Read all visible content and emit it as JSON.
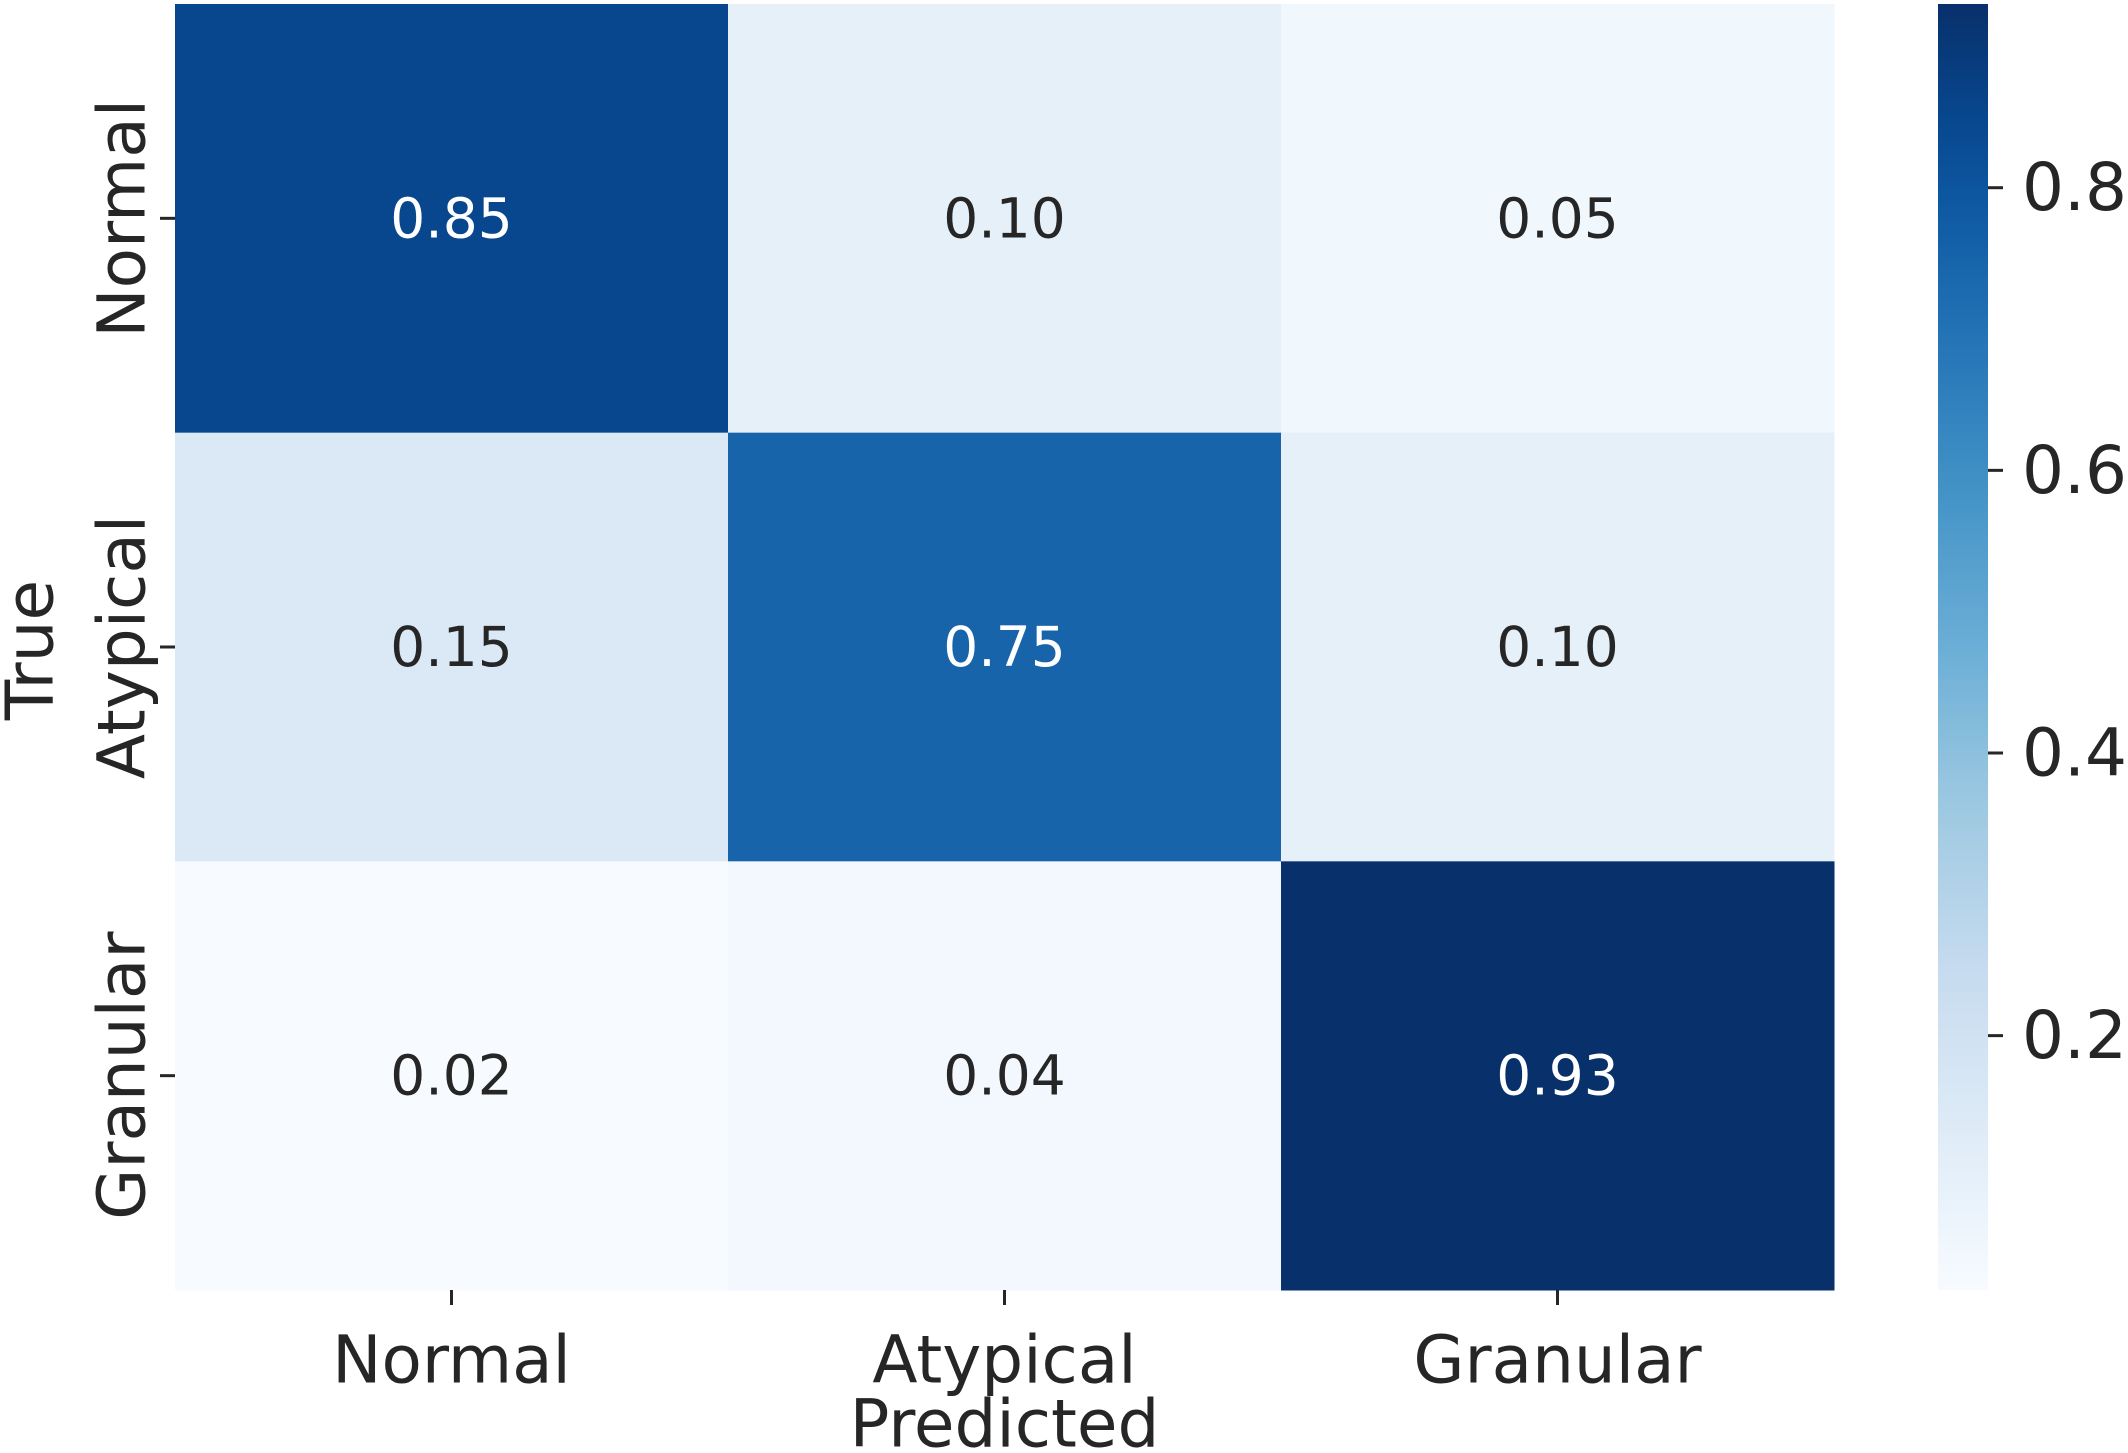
{
  "chart_data": {
    "type": "heatmap",
    "title": "",
    "xlabel": "Predicted",
    "ylabel": "True",
    "x_categories": [
      "Normal",
      "Atypical",
      "Granular"
    ],
    "y_categories": [
      "Normal",
      "Atypical",
      "Granular"
    ],
    "values": [
      [
        0.85,
        0.1,
        0.05
      ],
      [
        0.15,
        0.75,
        0.1
      ],
      [
        0.02,
        0.04,
        0.93
      ]
    ],
    "cell_labels": [
      [
        "0.85",
        "0.10",
        "0.05"
      ],
      [
        "0.15",
        "0.75",
        "0.10"
      ],
      [
        "0.02",
        "0.04",
        "0.93"
      ]
    ],
    "colormap": "Blues",
    "colorbar": {
      "range": [
        0.02,
        0.93
      ],
      "ticks": [
        0.2,
        0.4,
        0.6,
        0.8
      ],
      "tick_labels": [
        "0.2",
        "0.4",
        "0.6",
        "0.8"
      ]
    },
    "grid": false,
    "legend": "colorbar-right"
  }
}
